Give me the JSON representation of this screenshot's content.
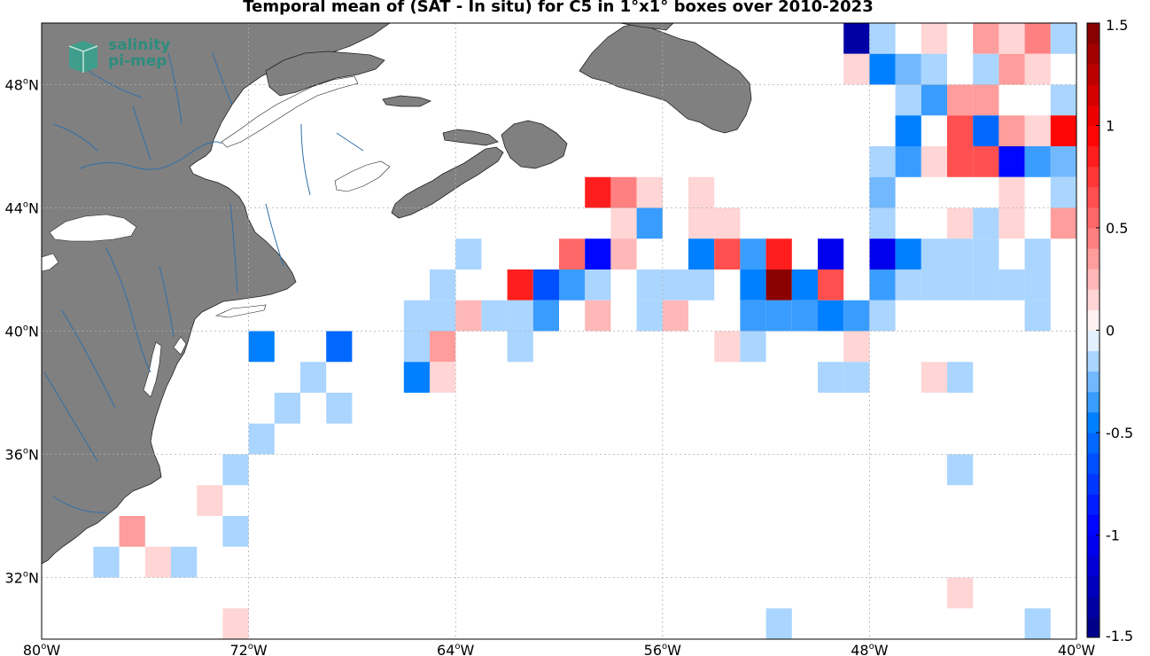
{
  "title": "Temporal mean of (SAT - In situ) for C5 in 1°x1° boxes over 2010-2023",
  "logo": {
    "line1": "salinity",
    "line2": "pi-mep"
  },
  "map": {
    "lon_range": [
      -80,
      -40
    ],
    "lat_range": [
      30,
      50
    ],
    "lon_ticks": [
      -80,
      -72,
      -64,
      -56,
      -48,
      -40
    ],
    "lat_ticks": [
      32,
      36,
      40,
      44,
      48
    ],
    "lon_tick_labels": [
      "80",
      "72",
      "64",
      "56",
      "48",
      "40"
    ],
    "lon_hemi": "W",
    "lat_tick_labels": [
      "32",
      "36",
      "40",
      "44",
      "48"
    ],
    "lat_hemi": "N",
    "grid": true,
    "land_color": "#808080",
    "river_color": "#2f6fa8"
  },
  "colorbar": {
    "range": [
      -1.5,
      1.5
    ],
    "ticks": [
      1.5,
      1,
      0.5,
      0,
      -0.5,
      -1,
      -1.5
    ],
    "tick_labels": [
      "1.5",
      "1",
      "0.5",
      "0",
      "-0.5",
      "-1",
      "-1.5"
    ],
    "min_color": "#00007f",
    "zero_color": "#ffffff",
    "max_color": "#7f0000",
    "steps": 30
  },
  "cells": [
    {
      "lon": -48.5,
      "lat": 49.5,
      "value": -1.35
    },
    {
      "lon": -47.5,
      "lat": 49.5,
      "value": -0.1
    },
    {
      "lon": -45.5,
      "lat": 49.5,
      "value": 0.1
    },
    {
      "lon": -43.5,
      "lat": 49.5,
      "value": 0.3
    },
    {
      "lon": -42.5,
      "lat": 49.5,
      "value": 0.1
    },
    {
      "lon": -41.5,
      "lat": 49.5,
      "value": 0.4
    },
    {
      "lon": -40.5,
      "lat": 49.5,
      "value": -0.1
    },
    {
      "lon": -39.5,
      "lat": 49.5,
      "value": -0.1
    },
    {
      "lon": -48.5,
      "lat": 48.5,
      "value": 0.1
    },
    {
      "lon": -47.5,
      "lat": 48.5,
      "value": -0.5
    },
    {
      "lon": -46.5,
      "lat": 48.5,
      "value": -0.25
    },
    {
      "lon": -45.5,
      "lat": 48.5,
      "value": -0.2
    },
    {
      "lon": -43.5,
      "lat": 48.5,
      "value": -0.2
    },
    {
      "lon": -42.5,
      "lat": 48.5,
      "value": 0.3
    },
    {
      "lon": -41.5,
      "lat": 48.5,
      "value": 0.1
    },
    {
      "lon": -46.5,
      "lat": 47.5,
      "value": -0.1
    },
    {
      "lon": -45.5,
      "lat": 47.5,
      "value": -0.3
    },
    {
      "lon": -44.5,
      "lat": 47.5,
      "value": 0.3
    },
    {
      "lon": -43.5,
      "lat": 47.5,
      "value": 0.3
    },
    {
      "lon": -40.5,
      "lat": 47.5,
      "value": -0.2
    },
    {
      "lon": -46.5,
      "lat": 46.5,
      "value": -0.5
    },
    {
      "lon": -44.5,
      "lat": 46.5,
      "value": 0.6
    },
    {
      "lon": -43.5,
      "lat": 46.5,
      "value": -0.55
    },
    {
      "lon": -42.5,
      "lat": 46.5,
      "value": 0.3
    },
    {
      "lon": -41.5,
      "lat": 46.5,
      "value": 0.15
    },
    {
      "lon": -40.5,
      "lat": 46.5,
      "value": 0.95
    },
    {
      "lon": -39.5,
      "lat": 46.5,
      "value": -0.45
    },
    {
      "lon": -47.5,
      "lat": 45.5,
      "value": -0.2
    },
    {
      "lon": -46.5,
      "lat": 45.5,
      "value": -0.3
    },
    {
      "lon": -45.5,
      "lat": 45.5,
      "value": 0.1
    },
    {
      "lon": -44.5,
      "lat": 45.5,
      "value": 0.6
    },
    {
      "lon": -43.5,
      "lat": 45.5,
      "value": 0.6
    },
    {
      "lon": -42.5,
      "lat": 45.5,
      "value": -0.95
    },
    {
      "lon": -41.5,
      "lat": 45.5,
      "value": -0.4
    },
    {
      "lon": -40.5,
      "lat": 45.5,
      "value": -0.25
    },
    {
      "lon": -39.5,
      "lat": 45.5,
      "value": -0.1
    },
    {
      "lon": -58.5,
      "lat": 44.5,
      "value": 0.8
    },
    {
      "lon": -57.5,
      "lat": 44.5,
      "value": 0.4
    },
    {
      "lon": -56.5,
      "lat": 44.5,
      "value": 0.1
    },
    {
      "lon": -54.5,
      "lat": 44.5,
      "value": 0.1
    },
    {
      "lon": -47.5,
      "lat": 44.5,
      "value": -0.25
    },
    {
      "lon": -42.5,
      "lat": 44.5,
      "value": 0.1
    },
    {
      "lon": -40.5,
      "lat": 44.5,
      "value": -0.1
    },
    {
      "lon": -57.5,
      "lat": 43.5,
      "value": 0.1
    },
    {
      "lon": -56.5,
      "lat": 43.5,
      "value": -0.35
    },
    {
      "lon": -54.5,
      "lat": 43.5,
      "value": 0.1
    },
    {
      "lon": -53.5,
      "lat": 43.5,
      "value": 0.1
    },
    {
      "lon": -47.5,
      "lat": 43.5,
      "value": -0.2
    },
    {
      "lon": -44.5,
      "lat": 43.5,
      "value": 0.1
    },
    {
      "lon": -43.5,
      "lat": 43.5,
      "value": -0.1
    },
    {
      "lon": -42.5,
      "lat": 43.5,
      "value": 0.1
    },
    {
      "lon": -40.5,
      "lat": 43.5,
      "value": 0.3
    },
    {
      "lon": -39.5,
      "lat": 43.5,
      "value": 0.2
    },
    {
      "lon": -63.5,
      "lat": 42.5,
      "value": -0.2
    },
    {
      "lon": -59.5,
      "lat": 42.5,
      "value": 0.5
    },
    {
      "lon": -58.5,
      "lat": 42.5,
      "value": -0.9
    },
    {
      "lon": -57.5,
      "lat": 42.5,
      "value": 0.25
    },
    {
      "lon": -54.5,
      "lat": 42.5,
      "value": -0.5
    },
    {
      "lon": -53.5,
      "lat": 42.5,
      "value": 0.65
    },
    {
      "lon": -52.5,
      "lat": 42.5,
      "value": -0.4
    },
    {
      "lon": -51.5,
      "lat": 42.5,
      "value": 0.85
    },
    {
      "lon": -49.5,
      "lat": 42.5,
      "value": -1.05
    },
    {
      "lon": -47.5,
      "lat": 42.5,
      "value": -1.05
    },
    {
      "lon": -46.5,
      "lat": 42.5,
      "value": -0.45
    },
    {
      "lon": -45.5,
      "lat": 42.5,
      "value": -0.1
    },
    {
      "lon": -44.5,
      "lat": 42.5,
      "value": -0.2
    },
    {
      "lon": -43.5,
      "lat": 42.5,
      "value": -0.1
    },
    {
      "lon": -41.5,
      "lat": 42.5,
      "value": -0.1
    },
    {
      "lon": -64.5,
      "lat": 41.5,
      "value": -0.1
    },
    {
      "lon": -61.5,
      "lat": 41.5,
      "value": 0.85
    },
    {
      "lon": -60.5,
      "lat": 41.5,
      "value": -0.7
    },
    {
      "lon": -59.5,
      "lat": 41.5,
      "value": -0.3
    },
    {
      "lon": -58.5,
      "lat": 41.5,
      "value": -0.1
    },
    {
      "lon": -56.5,
      "lat": 41.5,
      "value": -0.2
    },
    {
      "lon": -55.5,
      "lat": 41.5,
      "value": -0.2
    },
    {
      "lon": -54.5,
      "lat": 41.5,
      "value": -0.2
    },
    {
      "lon": -52.5,
      "lat": 41.5,
      "value": -0.45
    },
    {
      "lon": -51.5,
      "lat": 41.5,
      "value": 1.45
    },
    {
      "lon": -50.5,
      "lat": 41.5,
      "value": -0.45
    },
    {
      "lon": -49.5,
      "lat": 41.5,
      "value": 0.65
    },
    {
      "lon": -47.5,
      "lat": 41.5,
      "value": -0.3
    },
    {
      "lon": -46.5,
      "lat": 41.5,
      "value": -0.1
    },
    {
      "lon": -45.5,
      "lat": 41.5,
      "value": -0.1
    },
    {
      "lon": -44.5,
      "lat": 41.5,
      "value": -0.1
    },
    {
      "lon": -43.5,
      "lat": 41.5,
      "value": -0.1
    },
    {
      "lon": -42.5,
      "lat": 41.5,
      "value": -0.1
    },
    {
      "lon": -41.5,
      "lat": 41.5,
      "value": -0.1
    },
    {
      "lon": -65.5,
      "lat": 40.5,
      "value": -0.2
    },
    {
      "lon": -64.5,
      "lat": 40.5,
      "value": -0.2
    },
    {
      "lon": -63.5,
      "lat": 40.5,
      "value": 0.25
    },
    {
      "lon": -62.5,
      "lat": 40.5,
      "value": -0.2
    },
    {
      "lon": -61.5,
      "lat": 40.5,
      "value": -0.1
    },
    {
      "lon": -60.5,
      "lat": 40.5,
      "value": -0.3
    },
    {
      "lon": -58.5,
      "lat": 40.5,
      "value": 0.25
    },
    {
      "lon": -56.5,
      "lat": 40.5,
      "value": -0.1
    },
    {
      "lon": -55.5,
      "lat": 40.5,
      "value": 0.25
    },
    {
      "lon": -52.5,
      "lat": 40.5,
      "value": -0.3
    },
    {
      "lon": -51.5,
      "lat": 40.5,
      "value": -0.3
    },
    {
      "lon": -50.5,
      "lat": 40.5,
      "value": -0.4
    },
    {
      "lon": -49.5,
      "lat": 40.5,
      "value": -0.5
    },
    {
      "lon": -48.5,
      "lat": 40.5,
      "value": -0.3
    },
    {
      "lon": -47.5,
      "lat": 40.5,
      "value": -0.1
    },
    {
      "lon": -41.5,
      "lat": 40.5,
      "value": -0.1
    },
    {
      "lon": -71.5,
      "lat": 39.5,
      "value": -0.45
    },
    {
      "lon": -68.5,
      "lat": 39.5,
      "value": -0.55
    },
    {
      "lon": -65.5,
      "lat": 39.5,
      "value": -0.1
    },
    {
      "lon": -64.5,
      "lat": 39.5,
      "value": 0.3
    },
    {
      "lon": -61.5,
      "lat": 39.5,
      "value": -0.1
    },
    {
      "lon": -53.5,
      "lat": 39.5,
      "value": 0.1
    },
    {
      "lon": -52.5,
      "lat": 39.5,
      "value": -0.1
    },
    {
      "lon": -48.5,
      "lat": 39.5,
      "value": 0.1
    },
    {
      "lon": -65.5,
      "lat": 38.5,
      "value": -0.45
    },
    {
      "lon": -64.5,
      "lat": 38.5,
      "value": 0.1
    },
    {
      "lon": -69.5,
      "lat": 38.5,
      "value": -0.2
    },
    {
      "lon": -49.5,
      "lat": 38.5,
      "value": -0.1
    },
    {
      "lon": -48.5,
      "lat": 38.5,
      "value": -0.1
    },
    {
      "lon": -45.5,
      "lat": 38.5,
      "value": 0.1
    },
    {
      "lon": -44.5,
      "lat": 38.5,
      "value": -0.1
    },
    {
      "lon": -70.5,
      "lat": 37.5,
      "value": -0.2
    },
    {
      "lon": -68.5,
      "lat": 37.5,
      "value": -0.2
    },
    {
      "lon": -71.5,
      "lat": 36.5,
      "value": -0.1
    },
    {
      "lon": -72.5,
      "lat": 35.5,
      "value": -0.1
    },
    {
      "lon": -44.5,
      "lat": 35.5,
      "value": -0.1
    },
    {
      "lon": -73.5,
      "lat": 34.5,
      "value": 0.1
    },
    {
      "lon": -76.5,
      "lat": 33.5,
      "value": 0.3
    },
    {
      "lon": -72.5,
      "lat": 33.5,
      "value": -0.1
    },
    {
      "lon": -77.5,
      "lat": 32.5,
      "value": -0.1
    },
    {
      "lon": -75.5,
      "lat": 32.5,
      "value": 0.1
    },
    {
      "lon": -74.5,
      "lat": 32.5,
      "value": -0.1
    },
    {
      "lon": -44.5,
      "lat": 31.5,
      "value": 0.1
    },
    {
      "lon": -72.5,
      "lat": 30.5,
      "value": 0.1
    },
    {
      "lon": -51.5,
      "lat": 30.5,
      "value": -0.1
    },
    {
      "lon": -41.5,
      "lat": 30.5,
      "value": -0.1
    }
  ]
}
